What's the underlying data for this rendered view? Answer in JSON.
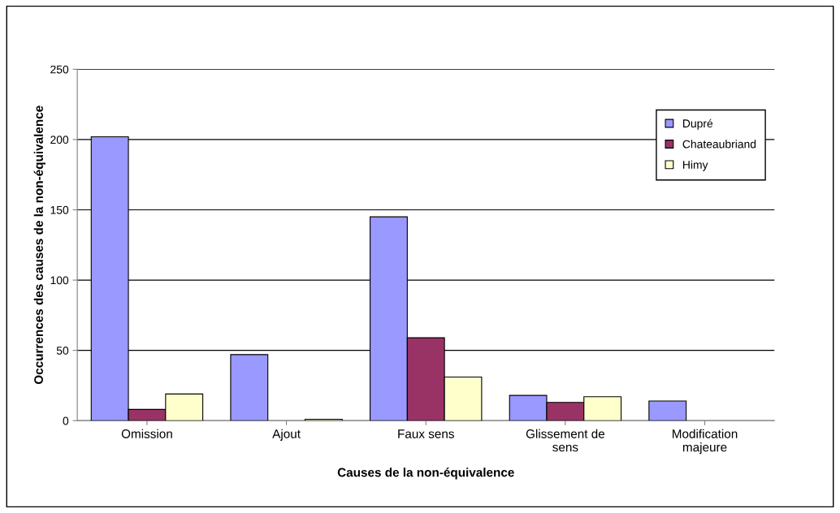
{
  "chart_data": {
    "type": "bar",
    "xlabel": "Causes de la non-équivalence",
    "ylabel": "Occurrences des causes de la non-équivalence",
    "categories": [
      "Omission",
      "Ajout",
      "Faux sens",
      "Glissement de\nsens",
      "Modification\nmajeure"
    ],
    "series": [
      {
        "name": "Dupré",
        "color": "#9999ff",
        "values": [
          202,
          47,
          145,
          18,
          14
        ]
      },
      {
        "name": "Chateaubriand",
        "color": "#993366",
        "values": [
          8,
          0,
          59,
          13,
          0
        ]
      },
      {
        "name": "Himy",
        "color": "#ffffcc",
        "values": [
          19,
          1,
          31,
          17,
          0
        ]
      }
    ],
    "ylim": [
      0,
      250
    ],
    "yticks": [
      0,
      50,
      100,
      150,
      200,
      250
    ],
    "grid": "y",
    "legend": "top right"
  }
}
